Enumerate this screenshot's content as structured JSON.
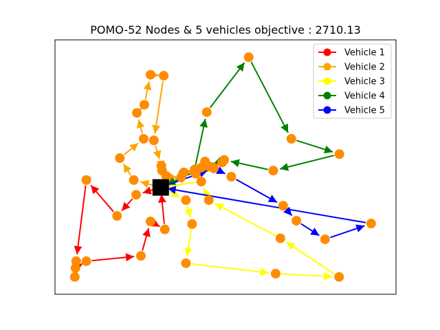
{
  "chart_data": {
    "type": "scatter",
    "title": "POMO-52 Nodes & 5 vehicles objective : 2710.13",
    "xlabel": "",
    "ylabel": "",
    "xlim": [
      0,
      1
    ],
    "ylim": [
      0,
      1
    ],
    "grid": false,
    "axis_ticks": false,
    "legend_position": "top-right",
    "depot": {
      "x": 0.31,
      "y": 0.42,
      "color": "#000000",
      "marker": "square"
    },
    "node_color": "#ff8c00",
    "series": [
      {
        "name": "Vehicle 1",
        "color": "#ff0000",
        "route": [
          {
            "x": 0.31,
            "y": 0.42
          },
          {
            "x": 0.238,
            "y": 0.391
          },
          {
            "x": 0.182,
            "y": 0.308
          },
          {
            "x": 0.092,
            "y": 0.449
          },
          {
            "x": 0.062,
            "y": 0.13
          },
          {
            "x": 0.058,
            "y": 0.068
          },
          {
            "x": 0.06,
            "y": 0.103
          },
          {
            "x": 0.092,
            "y": 0.13
          },
          {
            "x": 0.252,
            "y": 0.151
          },
          {
            "x": 0.28,
            "y": 0.286
          },
          {
            "x": 0.322,
            "y": 0.255
          },
          {
            "x": 0.31,
            "y": 0.42
          }
        ]
      },
      {
        "name": "Vehicle 2",
        "color": "#ffa500",
        "route": [
          {
            "x": 0.31,
            "y": 0.42
          },
          {
            "x": 0.231,
            "y": 0.449
          },
          {
            "x": 0.19,
            "y": 0.535
          },
          {
            "x": 0.26,
            "y": 0.611
          },
          {
            "x": 0.24,
            "y": 0.713
          },
          {
            "x": 0.262,
            "y": 0.745
          },
          {
            "x": 0.28,
            "y": 0.863
          },
          {
            "x": 0.319,
            "y": 0.859
          },
          {
            "x": 0.29,
            "y": 0.605
          },
          {
            "x": 0.312,
            "y": 0.505
          },
          {
            "x": 0.314,
            "y": 0.486
          },
          {
            "x": 0.326,
            "y": 0.465
          },
          {
            "x": 0.37,
            "y": 0.46
          },
          {
            "x": 0.378,
            "y": 0.479
          },
          {
            "x": 0.41,
            "y": 0.491
          },
          {
            "x": 0.429,
            "y": 0.498
          },
          {
            "x": 0.44,
            "y": 0.522
          },
          {
            "x": 0.462,
            "y": 0.5
          },
          {
            "x": 0.49,
            "y": 0.518
          },
          {
            "x": 0.413,
            "y": 0.474
          },
          {
            "x": 0.376,
            "y": 0.476
          },
          {
            "x": 0.31,
            "y": 0.42
          }
        ]
      },
      {
        "name": "Vehicle 3",
        "color": "#ffff00",
        "route": [
          {
            "x": 0.31,
            "y": 0.42
          },
          {
            "x": 0.384,
            "y": 0.37
          },
          {
            "x": 0.402,
            "y": 0.276
          },
          {
            "x": 0.384,
            "y": 0.122
          },
          {
            "x": 0.647,
            "y": 0.081
          },
          {
            "x": 0.833,
            "y": 0.068
          },
          {
            "x": 0.661,
            "y": 0.22
          },
          {
            "x": 0.451,
            "y": 0.37
          },
          {
            "x": 0.429,
            "y": 0.443
          },
          {
            "x": 0.31,
            "y": 0.42
          }
        ]
      },
      {
        "name": "Vehicle 4",
        "color": "#008000",
        "route": [
          {
            "x": 0.31,
            "y": 0.42
          },
          {
            "x": 0.408,
            "y": 0.481
          },
          {
            "x": 0.445,
            "y": 0.716
          },
          {
            "x": 0.568,
            "y": 0.932
          },
          {
            "x": 0.693,
            "y": 0.611
          },
          {
            "x": 0.834,
            "y": 0.551
          },
          {
            "x": 0.64,
            "y": 0.486
          },
          {
            "x": 0.496,
            "y": 0.528
          },
          {
            "x": 0.448,
            "y": 0.505
          },
          {
            "x": 0.31,
            "y": 0.42
          }
        ]
      },
      {
        "name": "Vehicle 5",
        "color": "#0000ff",
        "route": [
          {
            "x": 0.31,
            "y": 0.42
          },
          {
            "x": 0.466,
            "y": 0.495
          },
          {
            "x": 0.517,
            "y": 0.462
          },
          {
            "x": 0.669,
            "y": 0.348
          },
          {
            "x": 0.708,
            "y": 0.289
          },
          {
            "x": 0.792,
            "y": 0.216
          },
          {
            "x": 0.927,
            "y": 0.278
          },
          {
            "x": 0.31,
            "y": 0.42
          }
        ]
      }
    ]
  }
}
